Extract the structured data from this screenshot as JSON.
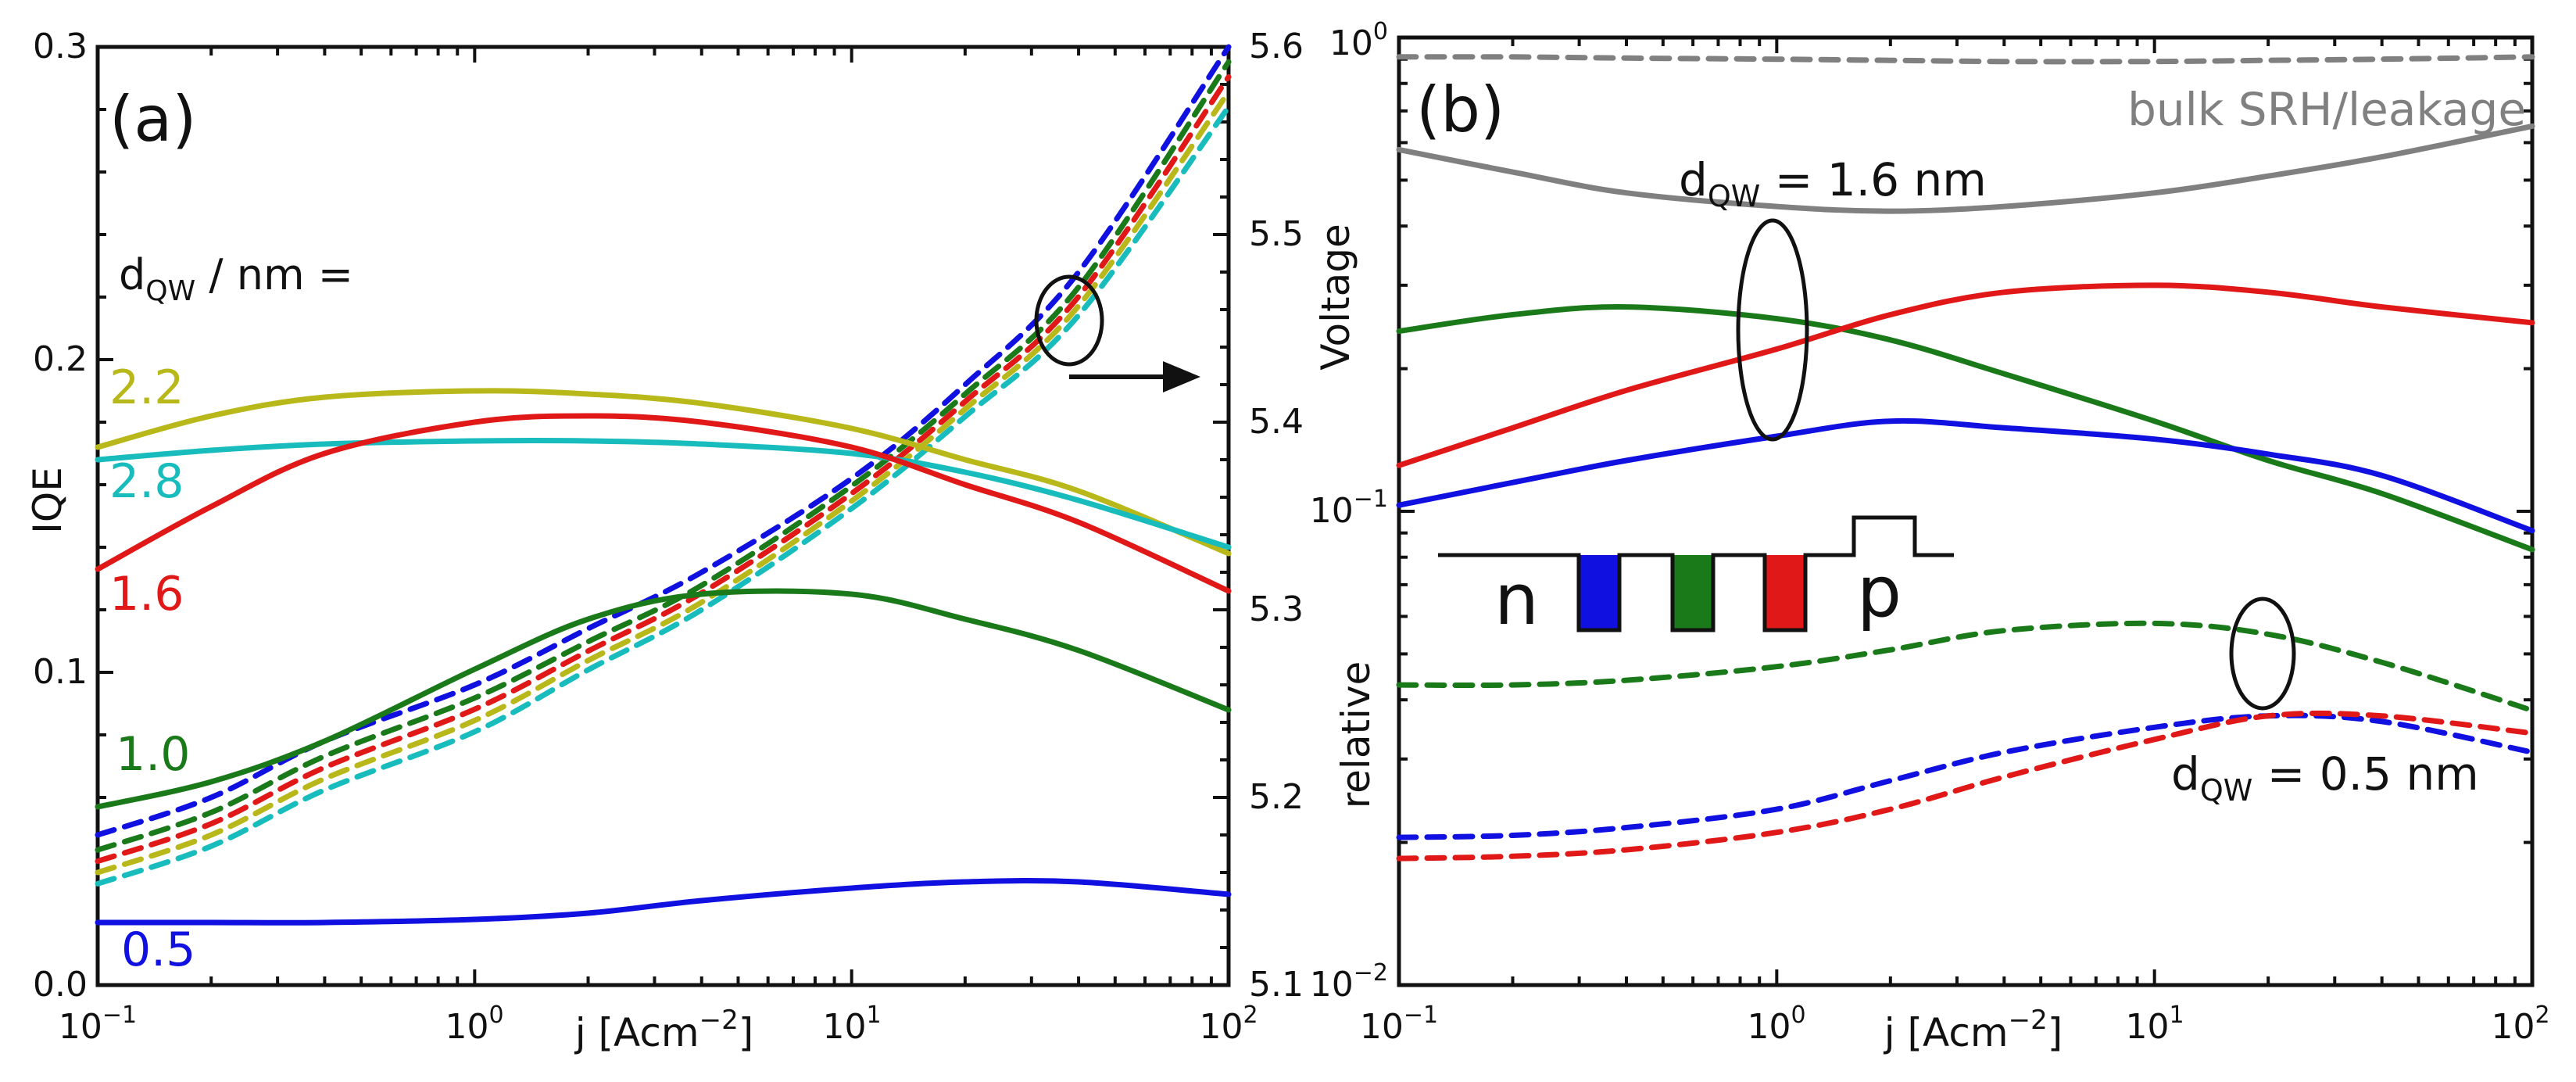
{
  "colors": {
    "c05": "#1010e0",
    "c10": "#1a7a1a",
    "c16": "#e01818",
    "c22": "#b8b81a",
    "c28": "#19bcbc",
    "gray": "#808080",
    "black": "#111111"
  },
  "chart_data": [
    {
      "type": "line",
      "panel": "(a)",
      "xlabel": "j [Acm",
      "xlabel_exp": "−2",
      "xlabel_close": "]",
      "ylabel": "IQE",
      "y2label": "Voltage",
      "xscale": "log",
      "xlim": [
        0.1,
        100
      ],
      "ylim": [
        0,
        0.3
      ],
      "y2lim": [
        5.1,
        5.6
      ],
      "xticks": [
        {
          "base": "10",
          "exp": "−1"
        },
        {
          "base": "10",
          "exp": "0"
        },
        {
          "base": "10",
          "exp": "1"
        },
        {
          "base": "10",
          "exp": "2"
        }
      ],
      "yticks": [
        "0.0",
        "0.1",
        "0.2",
        "0.3"
      ],
      "y2ticks": [
        "5.1",
        "5.2",
        "5.3",
        "5.4",
        "5.5",
        "5.6"
      ],
      "legend_title": "d",
      "legend_title_sub": "QW",
      "legend_title_rest": " / nm =",
      "labels": {
        "d22": "2.2",
        "d28": "2.8",
        "d16": "1.6",
        "d10": "1.0",
        "d05": "0.5"
      },
      "x": [
        0.1,
        0.2,
        0.4,
        1,
        2,
        4,
        10,
        20,
        40,
        100
      ],
      "series_iqe": [
        {
          "name": "2.2",
          "color": "#b8b81a",
          "values": [
            0.172,
            0.182,
            0.188,
            0.19,
            0.189,
            0.186,
            0.178,
            0.168,
            0.158,
            0.138
          ]
        },
        {
          "name": "2.8",
          "color": "#19bcbc",
          "values": [
            0.168,
            0.171,
            0.173,
            0.174,
            0.174,
            0.173,
            0.17,
            0.164,
            0.155,
            0.14
          ]
        },
        {
          "name": "1.6",
          "color": "#e01818",
          "values": [
            0.133,
            0.153,
            0.17,
            0.18,
            0.182,
            0.18,
            0.172,
            0.16,
            0.148,
            0.126
          ]
        },
        {
          "name": "1.0",
          "color": "#1a7a1a",
          "values": [
            0.057,
            0.065,
            0.078,
            0.101,
            0.117,
            0.125,
            0.125,
            0.117,
            0.107,
            0.088
          ]
        },
        {
          "name": "0.5",
          "color": "#1010e0",
          "values": [
            0.02,
            0.02,
            0.02,
            0.021,
            0.023,
            0.027,
            0.031,
            0.033,
            0.033,
            0.029
          ]
        }
      ],
      "series_voltage": [
        {
          "name": "0.5",
          "color": "#1010e0",
          "values": [
            5.18,
            5.2,
            5.23,
            5.26,
            5.29,
            5.32,
            5.37,
            5.42,
            5.48,
            5.6
          ]
        },
        {
          "name": "1.0",
          "color": "#1a7a1a",
          "values": [
            5.172,
            5.192,
            5.222,
            5.253,
            5.283,
            5.313,
            5.366,
            5.415,
            5.472,
            5.592
          ]
        },
        {
          "name": "1.6",
          "color": "#e01818",
          "values": [
            5.166,
            5.186,
            5.216,
            5.247,
            5.278,
            5.309,
            5.362,
            5.411,
            5.467,
            5.584
          ]
        },
        {
          "name": "2.2",
          "color": "#b8b81a",
          "values": [
            5.16,
            5.18,
            5.21,
            5.241,
            5.273,
            5.304,
            5.358,
            5.407,
            5.462,
            5.576
          ]
        },
        {
          "name": "2.8",
          "color": "#19bcbc",
          "values": [
            5.154,
            5.174,
            5.204,
            5.235,
            5.268,
            5.3,
            5.354,
            5.403,
            5.457,
            5.568
          ]
        }
      ]
    },
    {
      "type": "line",
      "panel": "(b)",
      "xlabel": "j [Acm",
      "xlabel_exp": "−2",
      "xlabel_close": "]",
      "ylabel": "relative",
      "xscale": "log",
      "yscale": "log",
      "xlim": [
        0.1,
        100
      ],
      "ylim": [
        0.01,
        1
      ],
      "xticks": [
        {
          "base": "10",
          "exp": "−1"
        },
        {
          "base": "10",
          "exp": "0"
        },
        {
          "base": "10",
          "exp": "1"
        },
        {
          "base": "10",
          "exp": "2"
        }
      ],
      "yticks": [
        {
          "base": "10",
          "exp": "−2"
        },
        {
          "base": "10",
          "exp": "−1"
        },
        {
          "base": "10",
          "exp": "0"
        }
      ],
      "annotations": {
        "bulk": "bulk SRH/leakage",
        "d16_pre": "d",
        "d16_sub": "QW",
        "d16_post": " = 1.6 nm",
        "d05_pre": "d",
        "d05_sub": "QW",
        "d05_post": " = 0.5 nm",
        "n": "n",
        "p": "p"
      },
      "x": [
        0.1,
        0.2,
        0.4,
        1,
        2,
        4,
        10,
        20,
        40,
        100
      ],
      "series": [
        {
          "name": "bulk SRH/leakage 0.5 nm",
          "color": "#808080",
          "dashed": true,
          "values": [
            0.91,
            0.91,
            0.905,
            0.9,
            0.895,
            0.89,
            0.89,
            0.895,
            0.9,
            0.91
          ]
        },
        {
          "name": "bulk SRH/leakage 1.6 nm",
          "color": "#808080",
          "dashed": false,
          "values": [
            0.58,
            0.52,
            0.47,
            0.44,
            0.43,
            0.44,
            0.47,
            0.51,
            0.56,
            0.65
          ]
        },
        {
          "name": "1.6 nm green",
          "color": "#1a7a1a",
          "dashed": false,
          "values": [
            0.24,
            0.26,
            0.27,
            0.255,
            0.23,
            0.195,
            0.155,
            0.128,
            0.109,
            0.083
          ]
        },
        {
          "name": "1.6 nm red",
          "color": "#e01818",
          "dashed": false,
          "values": [
            0.125,
            0.15,
            0.18,
            0.22,
            0.26,
            0.29,
            0.3,
            0.29,
            0.27,
            0.25
          ]
        },
        {
          "name": "1.6 nm blue",
          "color": "#1010e0",
          "dashed": false,
          "values": [
            0.103,
            0.115,
            0.128,
            0.144,
            0.155,
            0.15,
            0.142,
            0.132,
            0.119,
            0.091
          ]
        },
        {
          "name": "0.5 nm green",
          "color": "#1a7a1a",
          "dashed": true,
          "values": [
            0.043,
            0.043,
            0.044,
            0.047,
            0.051,
            0.056,
            0.058,
            0.055,
            0.048,
            0.038
          ]
        },
        {
          "name": "0.5 nm blue",
          "color": "#1010e0",
          "dashed": true,
          "values": [
            0.0205,
            0.0207,
            0.0215,
            0.0235,
            0.027,
            0.031,
            0.035,
            0.037,
            0.036,
            0.031
          ]
        },
        {
          "name": "0.5 nm red",
          "color": "#e01818",
          "dashed": true,
          "values": [
            0.0185,
            0.0187,
            0.0193,
            0.021,
            0.0235,
            0.0275,
            0.033,
            0.037,
            0.037,
            0.034
          ]
        }
      ]
    }
  ]
}
